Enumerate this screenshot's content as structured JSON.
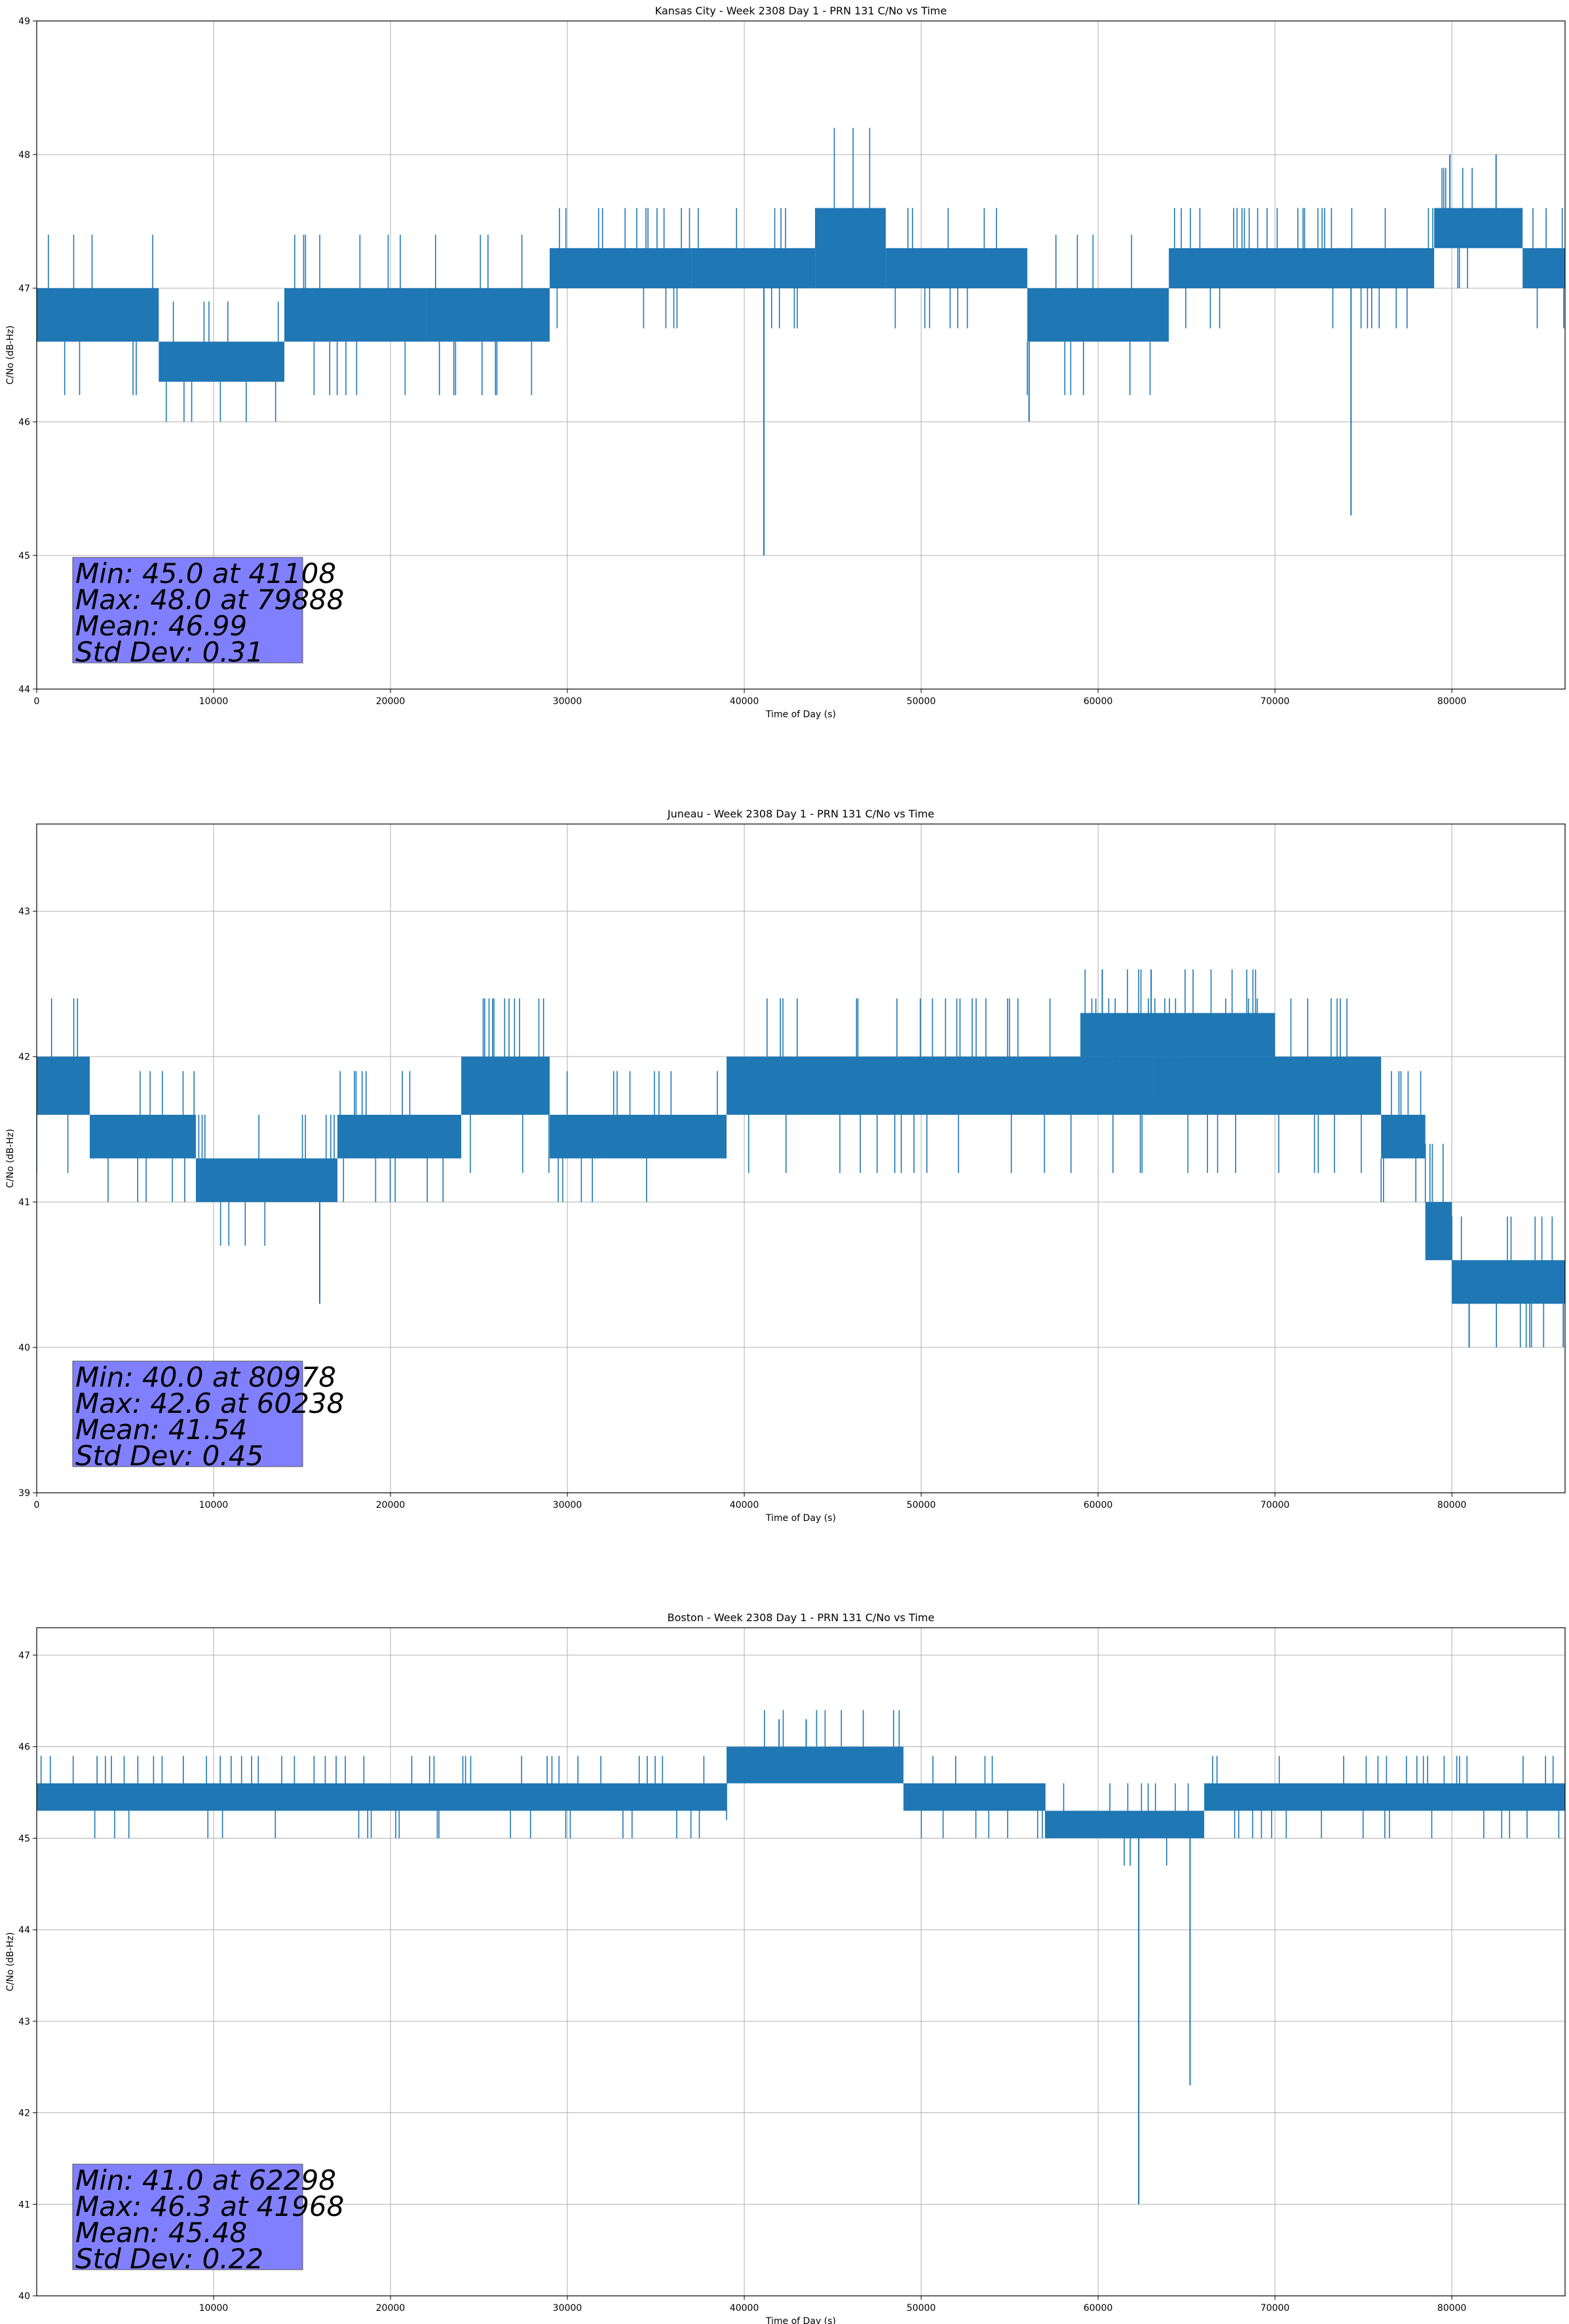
{
  "chart_data": [
    {
      "type": "line",
      "title": "Kansas City - Week 2308 Day 1 - PRN 131 C/No vs Time",
      "xlabel": "Time of Day (s)",
      "ylabel": "C/No (dB-Hz)",
      "xlim": [
        0,
        86400
      ],
      "ylim": [
        44,
        49
      ],
      "xticks": [
        0,
        10000,
        20000,
        30000,
        40000,
        50000,
        60000,
        70000,
        80000
      ],
      "yticks": [
        44,
        45,
        46,
        47,
        48,
        49
      ],
      "grid": true,
      "color": "#1f77b4",
      "band_segments": [
        {
          "x0": 0,
          "x1": 6900,
          "lo": 46.6,
          "hi": 47.0
        },
        {
          "x0": 6900,
          "x1": 14000,
          "lo": 46.3,
          "hi": 46.6
        },
        {
          "x0": 14000,
          "x1": 22000,
          "lo": 46.6,
          "hi": 47.0
        },
        {
          "x0": 22000,
          "x1": 29000,
          "lo": 46.6,
          "hi": 47.0
        },
        {
          "x0": 29000,
          "x1": 37000,
          "lo": 47.0,
          "hi": 47.3
        },
        {
          "x0": 37000,
          "x1": 44000,
          "lo": 47.0,
          "hi": 47.3
        },
        {
          "x0": 44000,
          "x1": 48000,
          "lo": 47.0,
          "hi": 47.6
        },
        {
          "x0": 48000,
          "x1": 56000,
          "lo": 47.0,
          "hi": 47.3
        },
        {
          "x0": 56000,
          "x1": 64000,
          "lo": 46.6,
          "hi": 47.0
        },
        {
          "x0": 64000,
          "x1": 79000,
          "lo": 47.0,
          "hi": 47.3
        },
        {
          "x0": 79000,
          "x1": 84000,
          "lo": 47.3,
          "hi": 47.6
        },
        {
          "x0": 84000,
          "x1": 86400,
          "lo": 47.0,
          "hi": 47.3
        }
      ],
      "spikes": [
        {
          "x": 41108,
          "y": 45.0
        },
        {
          "x": 56100,
          "y": 46.0
        },
        {
          "x": 74300,
          "y": 45.3
        },
        {
          "x": 79888,
          "y": 48.0
        },
        {
          "x": 82500,
          "y": 48.0
        }
      ],
      "stats_lines": [
        "Min: 45.0 at 41108",
        "Max: 48.0 at 79888",
        "Mean: 46.99",
        "Std Dev: 0.31"
      ],
      "stats_box_color": "#8080ff"
    },
    {
      "type": "line",
      "title": "Juneau - Week 2308 Day 1 - PRN 131 C/No vs Time",
      "xlabel": "Time of Day (s)",
      "ylabel": "C/No (dB-Hz)",
      "xlim": [
        0,
        86400
      ],
      "ylim": [
        39,
        43.6
      ],
      "xticks": [
        0,
        10000,
        20000,
        30000,
        40000,
        50000,
        60000,
        70000,
        80000
      ],
      "yticks": [
        39,
        40,
        41,
        42,
        43
      ],
      "grid": true,
      "color": "#1f77b4",
      "band_segments": [
        {
          "x0": 0,
          "x1": 3000,
          "lo": 41.6,
          "hi": 42.0
        },
        {
          "x0": 3000,
          "x1": 9000,
          "lo": 41.3,
          "hi": 41.6
        },
        {
          "x0": 9000,
          "x1": 17000,
          "lo": 41.0,
          "hi": 41.3
        },
        {
          "x0": 17000,
          "x1": 24000,
          "lo": 41.3,
          "hi": 41.6
        },
        {
          "x0": 24000,
          "x1": 29000,
          "lo": 41.6,
          "hi": 42.0
        },
        {
          "x0": 29000,
          "x1": 39000,
          "lo": 41.3,
          "hi": 41.6
        },
        {
          "x0": 39000,
          "x1": 76000,
          "lo": 41.6,
          "hi": 42.0
        },
        {
          "x0": 59000,
          "x1": 70000,
          "lo": 42.0,
          "hi": 42.3
        },
        {
          "x0": 76000,
          "x1": 78500,
          "lo": 41.3,
          "hi": 41.6
        },
        {
          "x0": 78500,
          "x1": 80000,
          "lo": 40.6,
          "hi": 41.0
        },
        {
          "x0": 80000,
          "x1": 86400,
          "lo": 40.3,
          "hi": 40.6
        }
      ],
      "spikes": [
        {
          "x": 16000,
          "y": 40.3
        },
        {
          "x": 60238,
          "y": 42.6
        },
        {
          "x": 63000,
          "y": 42.6
        },
        {
          "x": 80978,
          "y": 40.0
        },
        {
          "x": 86300,
          "y": 40.0
        }
      ],
      "stats_lines": [
        "Min: 40.0 at 80978",
        "Max: 42.6 at 60238",
        "Mean: 41.54",
        "Std Dev: 0.45"
      ],
      "stats_box_color": "#8080ff"
    },
    {
      "type": "line",
      "title": "Boston - Week 2308 Day 1 - PRN 131 C/No vs Time",
      "xlabel": "Time of Day (s)",
      "ylabel": "C/No (dB-Hz)",
      "xlim": [
        0,
        86400
      ],
      "ylim": [
        40,
        47.3
      ],
      "xticks": [
        10000,
        20000,
        30000,
        40000,
        50000,
        60000,
        70000,
        80000
      ],
      "yticks": [
        40,
        41,
        42,
        43,
        44,
        45,
        46,
        47
      ],
      "grid": true,
      "color": "#1f77b4",
      "band_segments": [
        {
          "x0": 0,
          "x1": 39000,
          "lo": 45.3,
          "hi": 45.6
        },
        {
          "x0": 39000,
          "x1": 49000,
          "lo": 45.6,
          "hi": 46.0
        },
        {
          "x0": 49000,
          "x1": 57000,
          "lo": 45.3,
          "hi": 45.6
        },
        {
          "x0": 57000,
          "x1": 66000,
          "lo": 45.0,
          "hi": 45.3
        },
        {
          "x0": 66000,
          "x1": 86400,
          "lo": 45.3,
          "hi": 45.6
        }
      ],
      "spikes": [
        {
          "x": 62298,
          "y": 41.0
        },
        {
          "x": 65200,
          "y": 42.3
        },
        {
          "x": 41968,
          "y": 46.3
        },
        {
          "x": 43500,
          "y": 46.3
        }
      ],
      "stats_lines": [
        "Min: 41.0 at 62298",
        "Max: 46.3 at 41968",
        "Mean: 45.48",
        "Std Dev: 0.22"
      ],
      "stats_box_color": "#8080ff"
    }
  ]
}
